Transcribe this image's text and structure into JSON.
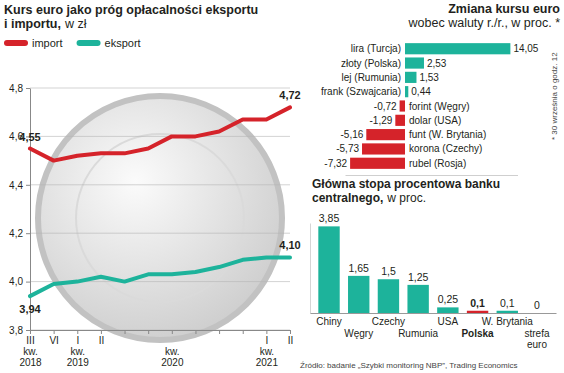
{
  "chart_data": [
    {
      "type": "line",
      "title": "Kurs euro jako próg opłacalności eksportu\ni importu,",
      "subtitle": "w zł",
      "categories": [
        "III\nkw.\n2018",
        "VI",
        "I\nkw.\n2019",
        "II",
        null,
        null,
        "\nkw.\n2020",
        null,
        null,
        null,
        "I\nkw.\n2021",
        "II"
      ],
      "series": [
        {
          "name": "import",
          "color": "#d5232a",
          "values": [
            4.55,
            4.5,
            4.52,
            4.53,
            4.53,
            4.55,
            4.6,
            4.6,
            4.62,
            4.67,
            4.67,
            4.72
          ],
          "value_labels": [
            "4,55",
            null,
            null,
            null,
            null,
            null,
            null,
            null,
            null,
            null,
            null,
            "4,72"
          ]
        },
        {
          "name": "eksport",
          "color": "#1db39b",
          "values": [
            3.94,
            3.99,
            4.0,
            4.02,
            4.0,
            4.03,
            4.03,
            4.04,
            4.06,
            4.09,
            4.1,
            4.1
          ],
          "value_labels": [
            "3,94",
            null,
            null,
            null,
            null,
            null,
            null,
            null,
            null,
            null,
            null,
            "4,10"
          ]
        }
      ],
      "ylim": [
        3.8,
        4.8
      ],
      "yticks": [
        {
          "value": 3.8,
          "label": "3,8"
        },
        {
          "value": 4.0,
          "label": "4,0"
        },
        {
          "value": 4.2,
          "label": "4,2"
        },
        {
          "value": 4.4,
          "label": "4,4"
        },
        {
          "value": 4.6,
          "label": "4,6"
        },
        {
          "value": 4.8,
          "label": "4,8"
        }
      ],
      "grid": true,
      "legend": "top-left",
      "data_labels": true
    },
    {
      "type": "bar",
      "orientation": "horizontal",
      "title": "Zmiana kursu euro",
      "subtitle": "wobec waluty r./r., w proc. *",
      "annotations": [
        "* 30 września o godz. 12"
      ],
      "categories": [
        "lira (Turcja)",
        "złoty (Polska)",
        "lej (Rumunia)",
        "frank (Szwajcaria)",
        "forint (Węgry)",
        "dolar (USA)",
        "funt (W. Brytania)",
        "korona (Czechy)",
        "rubel (Rosja)"
      ],
      "values": [
        14.05,
        2.53,
        1.53,
        0.44,
        -0.72,
        -1.29,
        -5.16,
        -5.73,
        -7.32
      ],
      "value_labels": [
        "14,05",
        "2,53",
        "1,53",
        "0,44",
        "-0,72",
        "-1,29",
        "-5,16",
        "-5,73",
        "-7,32"
      ],
      "colors": [
        "#1db39b",
        "#1db39b",
        "#1db39b",
        "#1db39b",
        "#d5232a",
        "#d5232a",
        "#d5232a",
        "#d5232a",
        "#d5232a"
      ],
      "xlim": [
        -8,
        15
      ],
      "tick_labels": "y",
      "data_labels": true
    },
    {
      "type": "bar",
      "title": "Główna stopa procentowa banku\ncentralnego,",
      "subtitle": "w proc.",
      "categories": [
        "Chiny",
        "Węgry",
        "Czechy",
        "Rumunia",
        "USA",
        "Polska",
        "W. Brytania",
        "strefa\neuro"
      ],
      "values": [
        3.85,
        1.65,
        1.5,
        1.25,
        0.25,
        0.1,
        0.1,
        0
      ],
      "value_labels": [
        "3,85",
        "1,65",
        "1,5",
        "1,25",
        "0,25",
        "0,1",
        "0,1",
        "0"
      ],
      "colors": [
        "#1db39b",
        "#1db39b",
        "#1db39b",
        "#1db39b",
        "#1db39b",
        "#d5232a",
        "#1db39b",
        "#1db39b"
      ],
      "ylim": [
        0,
        4
      ],
      "tick_labels": "x",
      "data_labels": true
    }
  ],
  "source": "Źródło: badanie „Szybki monitoring NBP”, Trading Economics"
}
